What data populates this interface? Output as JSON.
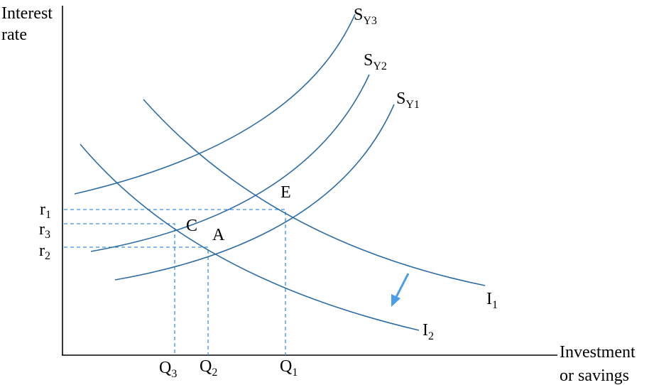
{
  "axes": {
    "y_label": [
      "Interest",
      "rate"
    ],
    "x_label": [
      "Investment",
      "or savings"
    ]
  },
  "curves": [
    {
      "label": "S",
      "subscript": "Y3"
    },
    {
      "label": "S",
      "subscript": "Y2"
    },
    {
      "label": "S",
      "subscript": "Y1"
    },
    {
      "label": "I",
      "subscript": "1"
    },
    {
      "label": "I",
      "subscript": "2"
    }
  ],
  "points": [
    "E",
    "C",
    "A"
  ],
  "rates": [
    {
      "label": "r",
      "subscript": "1"
    },
    {
      "label": "r",
      "subscript": "3"
    },
    {
      "label": "r",
      "subscript": "2"
    }
  ],
  "quantities": [
    {
      "label": "Q",
      "subscript": "3"
    },
    {
      "label": "Q",
      "subscript": "2"
    },
    {
      "label": "Q",
      "subscript": "1"
    }
  ]
}
